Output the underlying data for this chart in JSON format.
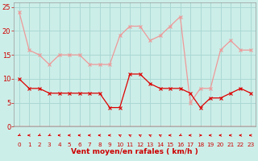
{
  "hours": [
    0,
    1,
    2,
    3,
    4,
    5,
    6,
    7,
    8,
    9,
    10,
    11,
    12,
    13,
    14,
    15,
    16,
    17,
    18,
    19,
    20,
    21,
    22,
    23
  ],
  "wind_mean": [
    10,
    8,
    8,
    7,
    7,
    7,
    7,
    7,
    7,
    4,
    4,
    11,
    11,
    9,
    8,
    8,
    8,
    7,
    4,
    6,
    6,
    7,
    8,
    7
  ],
  "wind_gust": [
    24,
    16,
    15,
    13,
    15,
    15,
    15,
    13,
    13,
    13,
    19,
    21,
    21,
    18,
    19,
    21,
    23,
    5,
    8,
    8,
    16,
    18,
    16,
    16
  ],
  "bg_color": "#cceee8",
  "grid_color": "#aad8d4",
  "line_mean_color": "#dd0000",
  "line_gust_color": "#ee9999",
  "xlabel": "Vent moyen/en rafales ( km/h )",
  "xlabel_color": "#cc0000",
  "tick_color": "#cc0000",
  "ylim": [
    0,
    26
  ],
  "yticks": [
    0,
    5,
    10,
    15,
    20,
    25
  ],
  "arrow_color": "#dd0000",
  "hline_color": "#cc0000",
  "wind_dirs_deg": [
    225,
    270,
    225,
    225,
    270,
    270,
    270,
    270,
    270,
    270,
    315,
    315,
    315,
    315,
    315,
    270,
    225,
    270,
    90,
    270,
    270,
    270,
    270,
    270
  ]
}
